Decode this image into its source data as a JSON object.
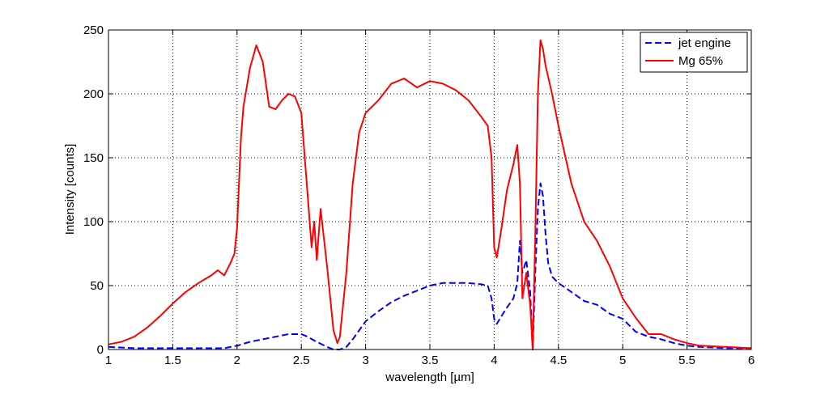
{
  "chart_data": {
    "type": "line",
    "xlabel": "wavelength [µm]",
    "ylabel": "Intensity [counts]",
    "xlim": [
      1,
      6
    ],
    "ylim": [
      0,
      250
    ],
    "xticks": [
      1,
      1.5,
      2,
      2.5,
      3,
      3.5,
      4,
      4.5,
      5,
      5.5,
      6
    ],
    "xtick_labels": [
      "1",
      "1.5",
      "2",
      "2.5",
      "3",
      "3.5",
      "4",
      "4.5",
      "5",
      "5.5",
      "6"
    ],
    "yticks": [
      0,
      50,
      100,
      150,
      200,
      250
    ],
    "ytick_labels": [
      "0",
      "50",
      "100",
      "150",
      "200",
      "250"
    ],
    "grid": true,
    "legend": "top-right",
    "series": [
      {
        "name": "jet engine",
        "color": "#0000ff",
        "dash": "dashed",
        "x": [
          1.0,
          1.2,
          1.4,
          1.6,
          1.8,
          1.9,
          2.0,
          2.1,
          2.2,
          2.3,
          2.4,
          2.5,
          2.55,
          2.6,
          2.7,
          2.75,
          2.8,
          2.85,
          2.9,
          3.0,
          3.1,
          3.2,
          3.3,
          3.4,
          3.5,
          3.6,
          3.7,
          3.8,
          3.9,
          3.95,
          3.98,
          4.0,
          4.02,
          4.05,
          4.1,
          4.15,
          4.18,
          4.2,
          4.22,
          4.25,
          4.28,
          4.3,
          4.32,
          4.34,
          4.36,
          4.38,
          4.4,
          4.42,
          4.45,
          4.5,
          4.6,
          4.7,
          4.8,
          4.9,
          5.0,
          5.1,
          5.2,
          5.3,
          5.4,
          5.5,
          5.6,
          5.8,
          6.0
        ],
        "y": [
          2,
          1,
          1,
          1,
          1,
          1,
          3,
          6,
          8,
          10,
          12,
          12,
          10,
          7,
          2,
          0,
          0,
          2,
          8,
          22,
          30,
          37,
          42,
          46,
          50,
          52,
          52,
          52,
          51,
          50,
          40,
          24,
          20,
          25,
          33,
          40,
          52,
          85,
          60,
          70,
          45,
          0,
          60,
          110,
          130,
          120,
          90,
          68,
          57,
          52,
          45,
          38,
          35,
          28,
          24,
          14,
          10,
          8,
          5,
          3,
          2,
          1,
          1
        ]
      },
      {
        "name": "Mg 65%",
        "color": "#ff0000",
        "dash": "solid",
        "x": [
          1.0,
          1.1,
          1.2,
          1.3,
          1.4,
          1.5,
          1.6,
          1.7,
          1.8,
          1.85,
          1.9,
          1.95,
          1.98,
          2.0,
          2.03,
          2.05,
          2.1,
          2.15,
          2.2,
          2.25,
          2.3,
          2.35,
          2.4,
          2.45,
          2.5,
          2.55,
          2.58,
          2.6,
          2.62,
          2.65,
          2.7,
          2.75,
          2.78,
          2.8,
          2.85,
          2.9,
          2.95,
          3.0,
          3.1,
          3.2,
          3.3,
          3.4,
          3.5,
          3.6,
          3.7,
          3.8,
          3.9,
          3.95,
          3.98,
          4.0,
          4.02,
          4.05,
          4.1,
          4.15,
          4.18,
          4.2,
          4.22,
          4.25,
          4.28,
          4.3,
          4.32,
          4.34,
          4.36,
          4.38,
          4.4,
          4.45,
          4.5,
          4.6,
          4.7,
          4.8,
          4.9,
          5.0,
          5.1,
          5.2,
          5.3,
          5.4,
          5.5,
          5.6,
          5.8,
          6.0
        ],
        "y": [
          4,
          6,
          10,
          17,
          26,
          36,
          45,
          52,
          58,
          62,
          58,
          68,
          75,
          95,
          165,
          190,
          220,
          238,
          225,
          190,
          188,
          195,
          200,
          198,
          185,
          120,
          80,
          100,
          70,
          110,
          65,
          15,
          5,
          10,
          60,
          130,
          170,
          185,
          195,
          208,
          212,
          205,
          210,
          208,
          203,
          195,
          182,
          175,
          150,
          80,
          72,
          90,
          125,
          145,
          160,
          130,
          40,
          60,
          35,
          0,
          90,
          200,
          242,
          235,
          222,
          200,
          175,
          130,
          100,
          85,
          65,
          40,
          25,
          12,
          12,
          8,
          5,
          3,
          2,
          1
        ]
      }
    ]
  }
}
